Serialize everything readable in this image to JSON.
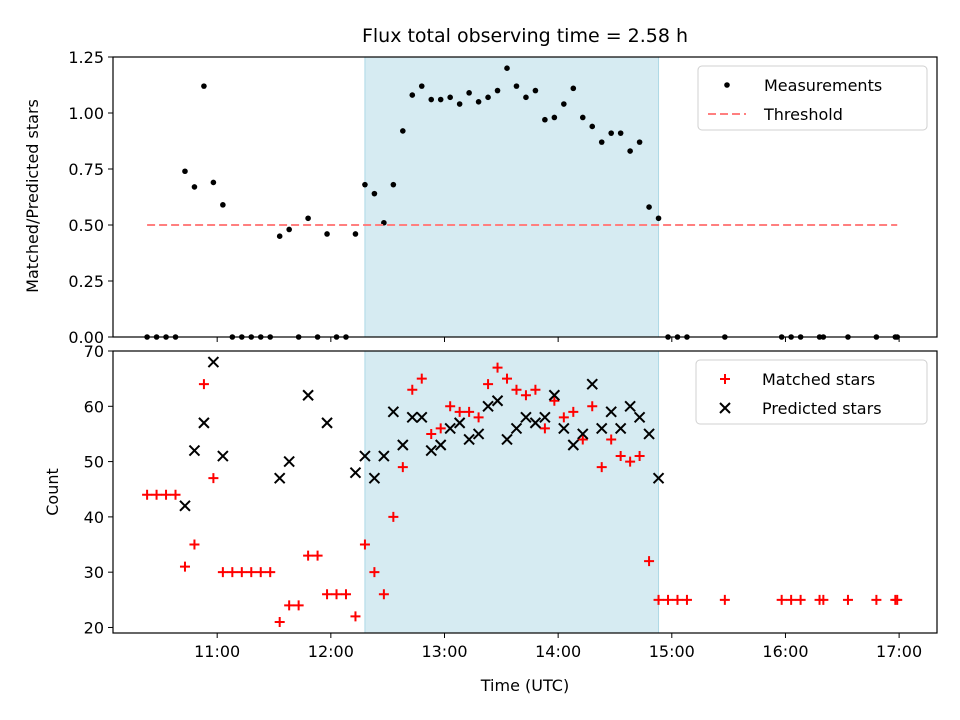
{
  "chart_data": [
    {
      "type": "scatter",
      "title": "Flux total observing time = 2.58 h",
      "xlabel": "",
      "ylabel": "Matched/Predicted stars",
      "ylim": [
        0,
        1.25
      ],
      "yticks": [
        "0.00",
        "0.25",
        "0.50",
        "0.75",
        "1.00",
        "1.25"
      ],
      "xlim": [
        "10:05",
        "17:20"
      ],
      "shaded_region": [
        "12:18",
        "14:53"
      ],
      "legend_position": "top-right",
      "series": [
        {
          "name": "Measurements",
          "marker": "dot",
          "color": "#000000",
          "points": [
            [
              "10:23",
              0
            ],
            [
              "10:28",
              0
            ],
            [
              "10:33",
              0
            ],
            [
              "10:38",
              0
            ],
            [
              "10:43",
              0.74
            ],
            [
              "10:48",
              0.67
            ],
            [
              "10:53",
              1.12
            ],
            [
              "10:58",
              0.69
            ],
            [
              "11:03",
              0.59
            ],
            [
              "11:08",
              0
            ],
            [
              "11:13",
              0
            ],
            [
              "11:18",
              0
            ],
            [
              "11:23",
              0
            ],
            [
              "11:28",
              0
            ],
            [
              "11:33",
              0.45
            ],
            [
              "11:38",
              0.48
            ],
            [
              "11:43",
              0
            ],
            [
              "11:48",
              0.53
            ],
            [
              "11:53",
              0
            ],
            [
              "11:58",
              0.46
            ],
            [
              "12:03",
              0
            ],
            [
              "12:08",
              0
            ],
            [
              "12:13",
              0.46
            ],
            [
              "12:18",
              0.68
            ],
            [
              "12:23",
              0.64
            ],
            [
              "12:28",
              0.51
            ],
            [
              "12:33",
              0.68
            ],
            [
              "12:38",
              0.92
            ],
            [
              "12:43",
              1.08
            ],
            [
              "12:48",
              1.12
            ],
            [
              "12:53",
              1.06
            ],
            [
              "12:58",
              1.06
            ],
            [
              "13:03",
              1.07
            ],
            [
              "13:08",
              1.04
            ],
            [
              "13:13",
              1.09
            ],
            [
              "13:18",
              1.05
            ],
            [
              "13:23",
              1.07
            ],
            [
              "13:28",
              1.1
            ],
            [
              "13:33",
              1.2
            ],
            [
              "13:38",
              1.12
            ],
            [
              "13:43",
              1.07
            ],
            [
              "13:48",
              1.1
            ],
            [
              "13:53",
              0.97
            ],
            [
              "13:58",
              0.98
            ],
            [
              "14:03",
              1.04
            ],
            [
              "14:08",
              1.11
            ],
            [
              "14:13",
              0.98
            ],
            [
              "14:18",
              0.94
            ],
            [
              "14:23",
              0.87
            ],
            [
              "14:28",
              0.91
            ],
            [
              "14:33",
              0.91
            ],
            [
              "14:38",
              0.83
            ],
            [
              "14:43",
              0.87
            ],
            [
              "14:48",
              0.58
            ],
            [
              "14:53",
              0.53
            ],
            [
              "14:58",
              0
            ],
            [
              "15:03",
              0
            ],
            [
              "15:08",
              0
            ],
            [
              "15:28",
              0
            ],
            [
              "15:58",
              0
            ],
            [
              "16:03",
              0
            ],
            [
              "16:08",
              0
            ],
            [
              "16:18",
              0
            ],
            [
              "16:20",
              0
            ],
            [
              "16:33",
              0
            ],
            [
              "16:48",
              0
            ],
            [
              "16:58",
              0
            ],
            [
              "16:59",
              0
            ]
          ]
        },
        {
          "name": "Threshold",
          "marker": "dashed-line",
          "color": "#ff7f7f",
          "x": [
            "10:23",
            "16:59"
          ],
          "y": [
            0.5,
            0.5
          ]
        }
      ]
    },
    {
      "type": "scatter",
      "title": "",
      "xlabel": "Time (UTC)",
      "ylabel": "Count",
      "ylim": [
        19,
        70
      ],
      "yticks": [
        "20",
        "30",
        "40",
        "50",
        "60",
        "70"
      ],
      "xticks": [
        "11:00",
        "12:00",
        "13:00",
        "14:00",
        "15:00",
        "16:00",
        "17:00"
      ],
      "xlim": [
        "10:05",
        "17:20"
      ],
      "shaded_region": [
        "12:18",
        "14:53"
      ],
      "legend_position": "top-right",
      "series": [
        {
          "name": "Matched stars",
          "marker": "plus",
          "color": "#ff0000",
          "points": [
            [
              "10:23",
              44
            ],
            [
              "10:28",
              44
            ],
            [
              "10:33",
              44
            ],
            [
              "10:38",
              44
            ],
            [
              "10:43",
              31
            ],
            [
              "10:48",
              35
            ],
            [
              "10:53",
              64
            ],
            [
              "10:58",
              47
            ],
            [
              "11:03",
              30
            ],
            [
              "11:08",
              30
            ],
            [
              "11:13",
              30
            ],
            [
              "11:18",
              30
            ],
            [
              "11:23",
              30
            ],
            [
              "11:28",
              30
            ],
            [
              "11:33",
              21
            ],
            [
              "11:38",
              24
            ],
            [
              "11:43",
              24
            ],
            [
              "11:48",
              33
            ],
            [
              "11:53",
              33
            ],
            [
              "11:58",
              26
            ],
            [
              "12:03",
              26
            ],
            [
              "12:08",
              26
            ],
            [
              "12:13",
              22
            ],
            [
              "12:18",
              35
            ],
            [
              "12:23",
              30
            ],
            [
              "12:28",
              26
            ],
            [
              "12:33",
              40
            ],
            [
              "12:38",
              49
            ],
            [
              "12:43",
              63
            ],
            [
              "12:48",
              65
            ],
            [
              "12:53",
              55
            ],
            [
              "12:58",
              56
            ],
            [
              "13:03",
              60
            ],
            [
              "13:08",
              59
            ],
            [
              "13:13",
              59
            ],
            [
              "13:18",
              58
            ],
            [
              "13:23",
              64
            ],
            [
              "13:28",
              67
            ],
            [
              "13:33",
              65
            ],
            [
              "13:38",
              63
            ],
            [
              "13:43",
              62
            ],
            [
              "13:48",
              63
            ],
            [
              "13:53",
              56
            ],
            [
              "13:58",
              61
            ],
            [
              "14:03",
              58
            ],
            [
              "14:08",
              59
            ],
            [
              "14:13",
              54
            ],
            [
              "14:18",
              60
            ],
            [
              "14:23",
              49
            ],
            [
              "14:28",
              54
            ],
            [
              "14:33",
              51
            ],
            [
              "14:38",
              50
            ],
            [
              "14:43",
              51
            ],
            [
              "14:48",
              32
            ],
            [
              "14:53",
              25
            ],
            [
              "14:58",
              25
            ],
            [
              "15:03",
              25
            ],
            [
              "15:08",
              25
            ],
            [
              "15:28",
              25
            ],
            [
              "15:58",
              25
            ],
            [
              "16:03",
              25
            ],
            [
              "16:08",
              25
            ],
            [
              "16:18",
              25
            ],
            [
              "16:20",
              25
            ],
            [
              "16:33",
              25
            ],
            [
              "16:48",
              25
            ],
            [
              "16:58",
              25
            ],
            [
              "16:59",
              25
            ]
          ]
        },
        {
          "name": "Predicted stars",
          "marker": "x",
          "color": "#000000",
          "points": [
            [
              "10:43",
              42
            ],
            [
              "10:48",
              52
            ],
            [
              "10:53",
              57
            ],
            [
              "10:58",
              68
            ],
            [
              "11:03",
              51
            ],
            [
              "11:33",
              47
            ],
            [
              "11:38",
              50
            ],
            [
              "11:48",
              62
            ],
            [
              "11:58",
              57
            ],
            [
              "12:13",
              48
            ],
            [
              "12:18",
              51
            ],
            [
              "12:23",
              47
            ],
            [
              "12:28",
              51
            ],
            [
              "12:33",
              59
            ],
            [
              "12:38",
              53
            ],
            [
              "12:43",
              58
            ],
            [
              "12:48",
              58
            ],
            [
              "12:53",
              52
            ],
            [
              "12:58",
              53
            ],
            [
              "13:03",
              56
            ],
            [
              "13:08",
              57
            ],
            [
              "13:13",
              54
            ],
            [
              "13:18",
              55
            ],
            [
              "13:23",
              60
            ],
            [
              "13:28",
              61
            ],
            [
              "13:33",
              54
            ],
            [
              "13:38",
              56
            ],
            [
              "13:43",
              58
            ],
            [
              "13:48",
              57
            ],
            [
              "13:53",
              58
            ],
            [
              "13:58",
              62
            ],
            [
              "14:03",
              56
            ],
            [
              "14:08",
              53
            ],
            [
              "14:13",
              55
            ],
            [
              "14:18",
              64
            ],
            [
              "14:23",
              56
            ],
            [
              "14:28",
              59
            ],
            [
              "14:33",
              56
            ],
            [
              "14:38",
              60
            ],
            [
              "14:43",
              58
            ],
            [
              "14:48",
              55
            ],
            [
              "14:53",
              47
            ]
          ]
        }
      ]
    }
  ]
}
